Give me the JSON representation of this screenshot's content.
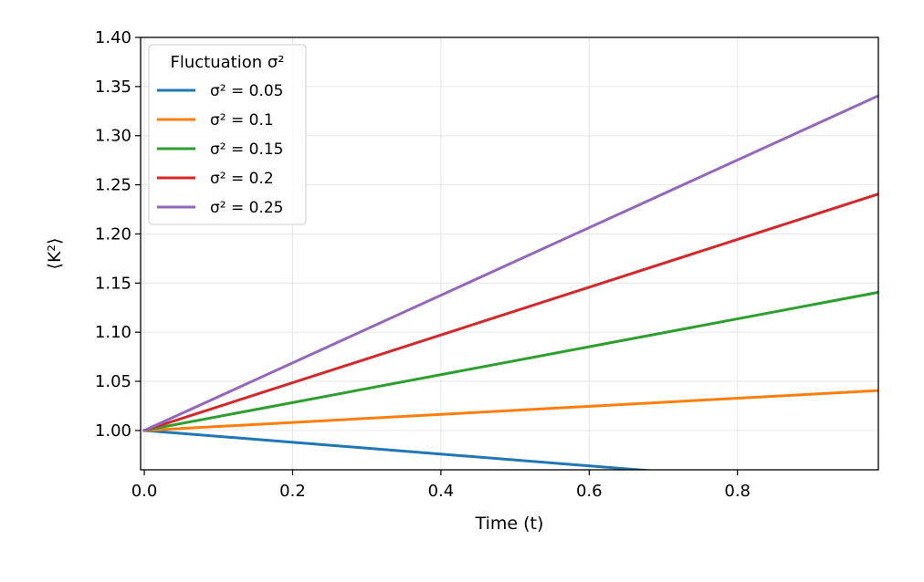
{
  "chart_data": {
    "type": "line",
    "xlabel": "Time (t)",
    "ylabel": "⟨K²⟩",
    "xlim": [
      -0.005,
      0.99
    ],
    "ylim": [
      0.96,
      1.4
    ],
    "xticks": [
      "0.0",
      "0.2",
      "0.4",
      "0.6",
      "0.8"
    ],
    "xtick_values": [
      0.0,
      0.2,
      0.4,
      0.6,
      0.8
    ],
    "yticks": [
      "1.00",
      "1.05",
      "1.10",
      "1.15",
      "1.20",
      "1.25",
      "1.30",
      "1.35",
      "1.40"
    ],
    "ytick_values": [
      1.0,
      1.05,
      1.1,
      1.15,
      1.2,
      1.25,
      1.3,
      1.35,
      1.4
    ],
    "grid": true,
    "legend": {
      "title": "Fluctuation σ²",
      "placement": "upper-left"
    },
    "series": [
      {
        "name": "σ² = 0.05",
        "color": "#1f77b4",
        "x": [
          0.0,
          0.99
        ],
        "y": [
          1.0,
          0.9406
        ]
      },
      {
        "name": "σ² = 0.1",
        "color": "#ff7f0e",
        "x": [
          0.0,
          0.99
        ],
        "y": [
          1.0,
          1.0406
        ]
      },
      {
        "name": "σ² = 0.15",
        "color": "#2ca02c",
        "x": [
          0.0,
          0.99
        ],
        "y": [
          1.0,
          1.1406
        ]
      },
      {
        "name": "σ² = 0.2",
        "color": "#d62728",
        "x": [
          0.0,
          0.99
        ],
        "y": [
          1.0,
          1.2406
        ]
      },
      {
        "name": "σ² = 0.25",
        "color": "#9467bd",
        "x": [
          0.0,
          0.99
        ],
        "y": [
          1.0,
          1.3406
        ]
      }
    ]
  }
}
